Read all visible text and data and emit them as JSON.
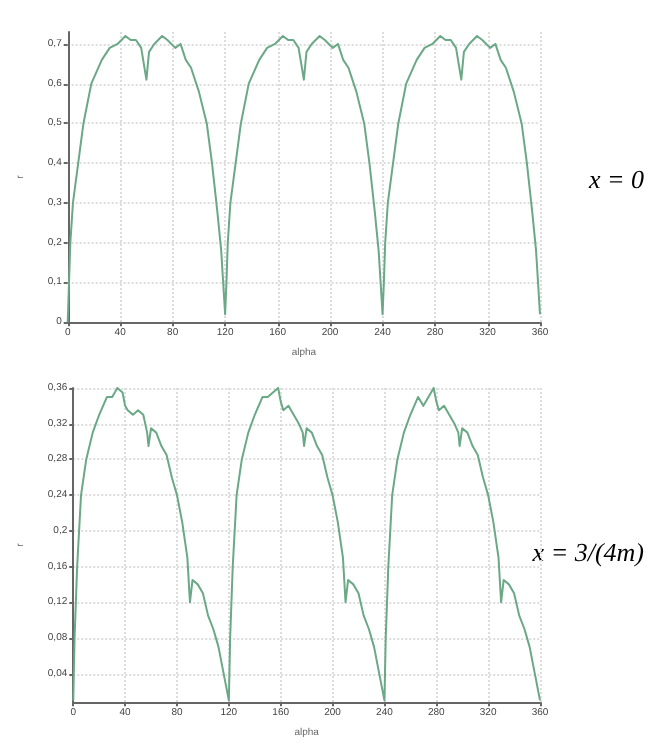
{
  "chart_data": [
    {
      "type": "line",
      "xlabel": "alpha",
      "ylabel": "r",
      "annotations": [
        "x = 0"
      ],
      "grid": true,
      "xlim": [
        0,
        360
      ],
      "xticks": [
        0,
        40,
        80,
        120,
        160,
        200,
        240,
        280,
        320,
        360
      ],
      "ylim": [
        0,
        0.73
      ],
      "yticks": [
        0,
        {
          "value": 0.1,
          "label": "0,1"
        },
        {
          "value": 0.2,
          "label": "0,2"
        },
        {
          "value": 0.3,
          "label": "0,3"
        },
        {
          "value": 0.4,
          "label": "0,4"
        },
        {
          "value": 0.5,
          "label": "0,5"
        },
        {
          "value": 0.6,
          "label": "0,6"
        },
        {
          "value": 0.7,
          "label": "0,7"
        }
      ],
      "series": [
        {
          "color": "#6aa886",
          "x": [
            0,
            1,
            2,
            4,
            8,
            12,
            18,
            26,
            32,
            38,
            44,
            48,
            52,
            56,
            60,
            62,
            66,
            72,
            76,
            82,
            86,
            90,
            94,
            100,
            106,
            110,
            114,
            117,
            120,
            121,
            122,
            124,
            128,
            132,
            138,
            146,
            152,
            158,
            164,
            168,
            172,
            176,
            180,
            182,
            186,
            192,
            196,
            202,
            206,
            210,
            214,
            220,
            226,
            230,
            234,
            237,
            240,
            241,
            242,
            244,
            248,
            252,
            258,
            266,
            272,
            278,
            284,
            288,
            292,
            296,
            300,
            302,
            306,
            312,
            316,
            322,
            326,
            330,
            334,
            340,
            346,
            350,
            354,
            357,
            360
          ],
          "values": [
            0,
            0.1,
            0.2,
            0.3,
            0.4,
            0.5,
            0.6,
            0.66,
            0.69,
            0.7,
            0.72,
            0.71,
            0.71,
            0.69,
            0.61,
            0.68,
            0.7,
            0.72,
            0.71,
            0.69,
            0.7,
            0.66,
            0.64,
            0.58,
            0.5,
            0.4,
            0.28,
            0.18,
            0.02,
            0.1,
            0.2,
            0.3,
            0.4,
            0.5,
            0.6,
            0.66,
            0.69,
            0.7,
            0.72,
            0.71,
            0.71,
            0.69,
            0.61,
            0.68,
            0.7,
            0.72,
            0.71,
            0.69,
            0.7,
            0.66,
            0.64,
            0.58,
            0.5,
            0.4,
            0.28,
            0.18,
            0.02,
            0.1,
            0.2,
            0.3,
            0.4,
            0.5,
            0.6,
            0.66,
            0.69,
            0.7,
            0.72,
            0.71,
            0.71,
            0.69,
            0.61,
            0.68,
            0.7,
            0.72,
            0.71,
            0.69,
            0.7,
            0.66,
            0.64,
            0.58,
            0.5,
            0.4,
            0.28,
            0.18,
            0.02
          ]
        }
      ]
    },
    {
      "type": "line",
      "xlabel": "alpha",
      "ylabel": "r",
      "annotations": [
        "x = 3/(4m)"
      ],
      "grid": true,
      "xlim": [
        0,
        360
      ],
      "xticks": [
        0,
        40,
        80,
        120,
        160,
        200,
        240,
        280,
        320,
        360
      ],
      "ylim": [
        0.008,
        0.36
      ],
      "yticks": [
        {
          "value": 0.04,
          "label": "0,04"
        },
        {
          "value": 0.08,
          "label": "0,08"
        },
        {
          "value": 0.12,
          "label": "0,12"
        },
        {
          "value": 0.16,
          "label": "0,16"
        },
        {
          "value": 0.2,
          "label": "0,2"
        },
        {
          "value": 0.24,
          "label": "0,24"
        },
        {
          "value": 0.28,
          "label": "0,28"
        },
        {
          "value": 0.32,
          "label": "0,32"
        },
        {
          "value": 0.36,
          "label": "0,36"
        }
      ],
      "series": [
        {
          "color": "#6aa886",
          "x": [
            0,
            1,
            3,
            6,
            10,
            15,
            20,
            26,
            30,
            34,
            38,
            40,
            42,
            46,
            50,
            54,
            57,
            58,
            60,
            64,
            68,
            72,
            76,
            80,
            84,
            88,
            90,
            92,
            96,
            100,
            104,
            108,
            112,
            116,
            120,
            121,
            123,
            126,
            130,
            135,
            140,
            146,
            150,
            154,
            158,
            160,
            162,
            166,
            170,
            174,
            177,
            178,
            180,
            184,
            188,
            192,
            196,
            200,
            204,
            208,
            210,
            212,
            216,
            220,
            224,
            228,
            232,
            236,
            240,
            241,
            243,
            246,
            250,
            255,
            260,
            266,
            270,
            274,
            278,
            280,
            282,
            286,
            290,
            294,
            297,
            298,
            300,
            304,
            308,
            312,
            316,
            320,
            324,
            328,
            330,
            332,
            336,
            340,
            344,
            348,
            352,
            356,
            360
          ],
          "values": [
            0.01,
            0.08,
            0.16,
            0.24,
            0.28,
            0.31,
            0.33,
            0.35,
            0.35,
            0.36,
            0.355,
            0.34,
            0.335,
            0.33,
            0.335,
            0.33,
            0.31,
            0.295,
            0.315,
            0.31,
            0.295,
            0.285,
            0.26,
            0.24,
            0.21,
            0.17,
            0.12,
            0.145,
            0.14,
            0.13,
            0.105,
            0.09,
            0.07,
            0.04,
            0.01,
            0.08,
            0.16,
            0.24,
            0.28,
            0.31,
            0.33,
            0.35,
            0.35,
            0.355,
            0.36,
            0.345,
            0.335,
            0.34,
            0.33,
            0.32,
            0.31,
            0.295,
            0.315,
            0.31,
            0.295,
            0.285,
            0.26,
            0.24,
            0.21,
            0.17,
            0.12,
            0.145,
            0.14,
            0.13,
            0.105,
            0.09,
            0.07,
            0.04,
            0.01,
            0.08,
            0.16,
            0.24,
            0.28,
            0.31,
            0.33,
            0.35,
            0.34,
            0.35,
            0.36,
            0.345,
            0.335,
            0.34,
            0.33,
            0.32,
            0.31,
            0.295,
            0.315,
            0.31,
            0.295,
            0.285,
            0.26,
            0.24,
            0.21,
            0.17,
            0.12,
            0.145,
            0.14,
            0.13,
            0.105,
            0.09,
            0.07,
            0.04,
            0.01
          ]
        }
      ]
    }
  ]
}
